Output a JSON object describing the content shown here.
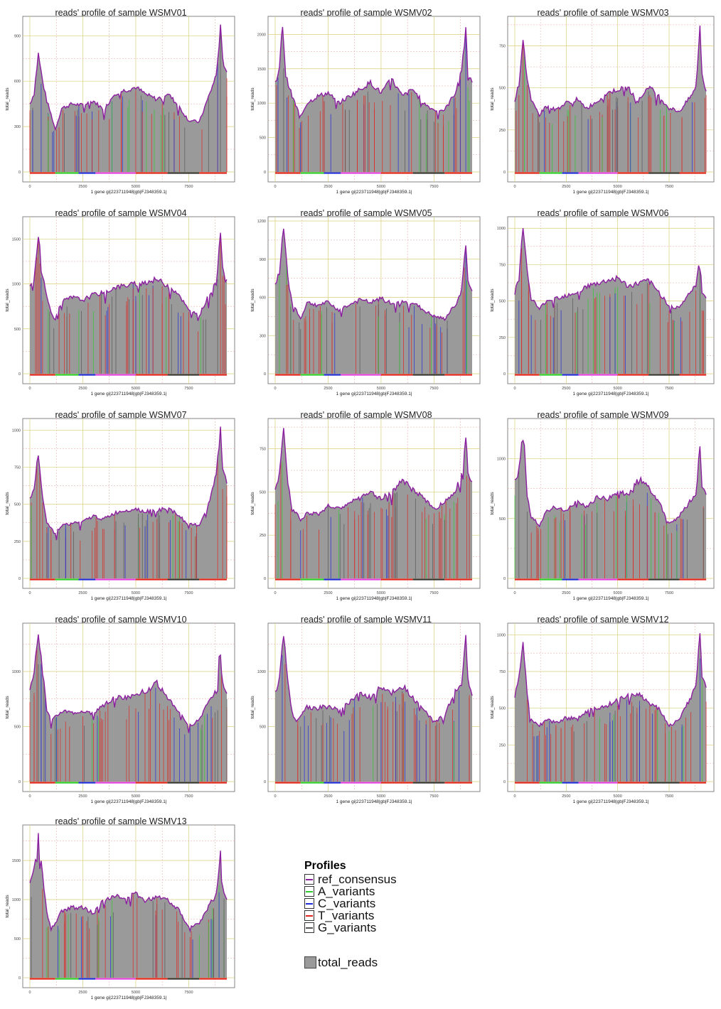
{
  "colors": {
    "fill": "#9a9a9a",
    "ref_consensus": "#8b1fa0",
    "A_variants": "#2ecc2e",
    "C_variants": "#1f2ad8",
    "T_variants": "#e0241f",
    "G_variants": "#555555",
    "grid_major": "#d8cf7a",
    "grid_minor": "#e6a3a3"
  },
  "legend": {
    "profiles_title": "Profiles",
    "items": [
      "ref_consensus",
      "A_variants",
      "C_variants",
      "T_variants",
      "G_variants"
    ],
    "total_reads_label": "total_reads"
  },
  "chart_data": [
    {
      "type": "area",
      "title": "reads' profile of sample WSMV01",
      "xlabel": "1 gene gi|223711948|gb|FJ348359.1|",
      "ylabel": "total_reads",
      "xlim": [
        0,
        9400
      ],
      "ylim": [
        0,
        1000
      ],
      "xticks": [
        0,
        2500,
        5000,
        7500
      ],
      "yticks": [
        0,
        300,
        600,
        900
      ],
      "x": [
        0,
        200,
        400,
        600,
        800,
        1000,
        1200,
        1500,
        2000,
        2500,
        3000,
        3500,
        4000,
        4500,
        5000,
        5500,
        6000,
        6500,
        7000,
        7500,
        8000,
        8500,
        8800,
        9000,
        9100,
        9300
      ],
      "values": [
        450,
        520,
        780,
        600,
        470,
        380,
        280,
        420,
        450,
        440,
        470,
        410,
        520,
        540,
        560,
        510,
        480,
        520,
        440,
        340,
        330,
        520,
        640,
        950,
        740,
        660
      ]
    },
    {
      "type": "area",
      "title": "reads' profile of sample WSMV02",
      "xlabel": "1 gene gi|223711948|gb|FJ348359.1|",
      "ylabel": "total_reads",
      "xlim": [
        0,
        9400
      ],
      "ylim": [
        0,
        2200
      ],
      "xticks": [
        0,
        2500,
        5000,
        7500
      ],
      "yticks": [
        0,
        500,
        1000,
        1500,
        2000
      ],
      "x": [
        0,
        200,
        350,
        500,
        800,
        1200,
        1500,
        2000,
        2500,
        3000,
        3500,
        4000,
        4500,
        5000,
        5500,
        6000,
        6500,
        7000,
        7500,
        8000,
        8500,
        8800,
        9000,
        9100,
        9300
      ],
      "values": [
        1300,
        1500,
        2150,
        1400,
        1100,
        800,
        1000,
        1100,
        1150,
        1000,
        1100,
        1200,
        1300,
        1150,
        1350,
        1100,
        1200,
        1000,
        900,
        900,
        1150,
        1500,
        2050,
        1450,
        1300
      ]
    },
    {
      "type": "area",
      "title": "reads' profile of sample WSMV03",
      "xlabel": "1 gene gi|223711948|gb|FJ348359.1|",
      "ylabel": "total_reads",
      "xlim": [
        0,
        9400
      ],
      "ylim": [
        0,
        900
      ],
      "xticks": [
        0,
        2500,
        5000,
        7500
      ],
      "yticks": [
        0,
        250,
        500,
        750
      ],
      "x": [
        0,
        200,
        400,
        600,
        800,
        1000,
        1200,
        1500,
        2000,
        2500,
        3000,
        3500,
        4000,
        4500,
        5000,
        5500,
        6000,
        6500,
        7000,
        7500,
        8000,
        8500,
        8800,
        9000,
        9100,
        9300
      ],
      "values": [
        430,
        520,
        800,
        550,
        420,
        380,
        340,
        390,
        370,
        410,
        430,
        380,
        420,
        470,
        490,
        500,
        420,
        510,
        450,
        380,
        360,
        440,
        500,
        860,
        580,
        480
      ]
    },
    {
      "type": "area",
      "title": "reads' profile of sample WSMV04",
      "xlabel": "1 gene gi|223711948|gb|FJ348359.1|",
      "ylabel": "total_reads",
      "xlim": [
        0,
        9400
      ],
      "ylim": [
        0,
        1700
      ],
      "xticks": [
        0,
        2500,
        5000,
        7500
      ],
      "yticks": [
        0,
        500,
        1000,
        1500
      ],
      "x": [
        0,
        200,
        400,
        600,
        800,
        1000,
        1200,
        1500,
        2000,
        2500,
        3000,
        3500,
        4000,
        4500,
        5000,
        5500,
        6000,
        6500,
        7000,
        7500,
        8000,
        8500,
        8800,
        9000,
        9100,
        9300
      ],
      "values": [
        950,
        1050,
        1550,
        1100,
        850,
        700,
        600,
        800,
        850,
        820,
        880,
        900,
        960,
        980,
        1000,
        1020,
        1050,
        980,
        900,
        700,
        650,
        900,
        1000,
        1600,
        1200,
        1050
      ]
    },
    {
      "type": "area",
      "title": "reads' profile of sample WSMV05",
      "xlabel": "1 gene gi|223711948|gb|FJ348359.1|",
      "ylabel": "total_reads",
      "xlim": [
        0,
        9400
      ],
      "ylim": [
        0,
        1200
      ],
      "xticks": [
        0,
        2500,
        5000,
        7500
      ],
      "yticks": [
        0,
        300,
        600,
        900,
        1200
      ],
      "x": [
        0,
        200,
        400,
        600,
        800,
        1000,
        1200,
        1500,
        2000,
        2500,
        3000,
        3500,
        4000,
        4500,
        5000,
        5500,
        6000,
        6500,
        7000,
        7500,
        8000,
        8500,
        8800,
        9000,
        9100,
        9300
      ],
      "values": [
        700,
        800,
        1150,
        750,
        560,
        500,
        430,
        560,
        540,
        560,
        500,
        540,
        580,
        560,
        590,
        550,
        560,
        560,
        500,
        450,
        430,
        540,
        650,
        1030,
        720,
        650
      ]
    },
    {
      "type": "area",
      "title": "reads' profile of sample WSMV06",
      "xlabel": "1 gene gi|223711948|gb|FJ348359.1|",
      "ylabel": "total_reads",
      "xlim": [
        0,
        9400
      ],
      "ylim": [
        0,
        1050
      ],
      "xticks": [
        0,
        2500,
        5000,
        7500
      ],
      "yticks": [
        0,
        250,
        500,
        750,
        1000
      ],
      "x": [
        0,
        200,
        400,
        600,
        800,
        1000,
        1200,
        1500,
        2000,
        2500,
        3000,
        3500,
        4000,
        4500,
        5000,
        5500,
        6000,
        6500,
        7000,
        7500,
        8000,
        8500,
        8800,
        9000,
        9100,
        9300
      ],
      "values": [
        560,
        650,
        1030,
        700,
        520,
        480,
        440,
        500,
        520,
        540,
        560,
        600,
        620,
        640,
        660,
        600,
        620,
        640,
        560,
        470,
        450,
        560,
        600,
        790,
        560,
        520
      ]
    },
    {
      "type": "area",
      "title": "reads' profile of sample WSMV07",
      "xlabel": "1 gene gi|223711948|gb|FJ348359.1|",
      "ylabel": "total_reads",
      "xlim": [
        0,
        9400
      ],
      "ylim": [
        0,
        1050
      ],
      "xticks": [
        0,
        2500,
        5000,
        7500
      ],
      "yticks": [
        0,
        250,
        500,
        750,
        1000
      ],
      "x": [
        0,
        200,
        400,
        600,
        800,
        1000,
        1200,
        1500,
        2000,
        2500,
        3000,
        3500,
        4000,
        4500,
        5000,
        5500,
        6000,
        6500,
        7000,
        7500,
        8000,
        8500,
        8800,
        9000,
        9100,
        9300
      ],
      "values": [
        540,
        600,
        850,
        560,
        380,
        340,
        300,
        360,
        370,
        380,
        420,
        400,
        440,
        460,
        470,
        450,
        460,
        470,
        430,
        360,
        360,
        520,
        700,
        1000,
        760,
        640
      ]
    },
    {
      "type": "area",
      "title": "reads' profile of sample WSMV08",
      "xlabel": "1 gene gi|223711948|gb|FJ348359.1|",
      "ylabel": "total_reads",
      "xlim": [
        0,
        9400
      ],
      "ylim": [
        0,
        900
      ],
      "xticks": [
        0,
        2500,
        5000,
        7500
      ],
      "yticks": [
        0,
        250,
        500,
        750
      ],
      "x": [
        0,
        200,
        400,
        600,
        800,
        1000,
        1200,
        1500,
        2000,
        2500,
        3000,
        3500,
        4000,
        4500,
        5000,
        5500,
        6000,
        6500,
        7000,
        7500,
        8000,
        8500,
        8800,
        9000,
        9100,
        9300
      ],
      "values": [
        500,
        600,
        870,
        560,
        400,
        380,
        340,
        380,
        370,
        420,
        400,
        440,
        460,
        500,
        460,
        500,
        570,
        510,
        470,
        400,
        440,
        510,
        600,
        830,
        620,
        560
      ]
    },
    {
      "type": "area",
      "title": "reads' profile of sample WSMV09",
      "xlabel": "1 gene gi|223711948|gb|FJ348359.1|",
      "ylabel": "total_reads",
      "xlim": [
        0,
        9400
      ],
      "ylim": [
        0,
        1300
      ],
      "xticks": [
        0,
        2500,
        5000,
        7500
      ],
      "yticks": [
        0,
        500,
        1000
      ],
      "x": [
        0,
        200,
        400,
        600,
        800,
        1000,
        1200,
        1500,
        2000,
        2500,
        3000,
        3500,
        4000,
        4500,
        5000,
        5500,
        6000,
        6500,
        7000,
        7500,
        8000,
        8500,
        8800,
        9000,
        9100,
        9300
      ],
      "values": [
        800,
        900,
        1280,
        700,
        500,
        480,
        440,
        560,
        600,
        560,
        640,
        600,
        680,
        660,
        720,
        700,
        840,
        760,
        640,
        460,
        520,
        640,
        700,
        1110,
        780,
        700
      ]
    },
    {
      "type": "area",
      "title": "reads' profile of sample WSMV10",
      "xlabel": "1 gene gi|223711948|gb|FJ348359.1|",
      "ylabel": "total_reads",
      "xlim": [
        0,
        9400
      ],
      "ylim": [
        0,
        1400
      ],
      "xticks": [
        0,
        2500,
        5000,
        7500
      ],
      "yticks": [
        0,
        500,
        1000
      ],
      "x": [
        0,
        200,
        400,
        600,
        800,
        1000,
        1200,
        1500,
        2000,
        2500,
        3000,
        3500,
        4000,
        4500,
        5000,
        5500,
        6000,
        6500,
        7000,
        7500,
        8000,
        8500,
        8800,
        9000,
        9100,
        9300
      ],
      "values": [
        850,
        1000,
        1360,
        1000,
        650,
        560,
        600,
        640,
        620,
        640,
        620,
        700,
        760,
        760,
        800,
        820,
        900,
        760,
        640,
        500,
        560,
        760,
        820,
        1260,
        900,
        800
      ]
    },
    {
      "type": "area",
      "title": "reads' profile of sample WSMV11",
      "xlabel": "1 gene gi|223711948|gb|FJ348359.1|",
      "ylabel": "total_reads",
      "xlim": [
        0,
        9400
      ],
      "ylim": [
        0,
        1400
      ],
      "xticks": [
        0,
        2500,
        5000,
        7500
      ],
      "yticks": [
        0,
        500,
        1000
      ],
      "x": [
        0,
        200,
        400,
        600,
        800,
        1000,
        1200,
        1500,
        2000,
        2500,
        3000,
        3500,
        4000,
        4500,
        5000,
        5500,
        6000,
        6500,
        7000,
        7500,
        8000,
        8500,
        8800,
        9000,
        9100,
        9300
      ],
      "values": [
        800,
        950,
        1360,
        900,
        620,
        560,
        600,
        680,
        660,
        700,
        640,
        720,
        800,
        760,
        860,
        800,
        880,
        760,
        660,
        540,
        600,
        820,
        880,
        1330,
        940,
        780
      ]
    },
    {
      "type": "area",
      "title": "reads' profile of sample WSMV12",
      "xlabel": "1 gene gi|223711948|gb|FJ348359.1|",
      "ylabel": "total_reads",
      "xlim": [
        0,
        9400
      ],
      "ylim": [
        0,
        1050
      ],
      "xticks": [
        0,
        2500,
        5000,
        7500
      ],
      "yticks": [
        0,
        250,
        500,
        750,
        1000
      ],
      "x": [
        0,
        200,
        400,
        600,
        800,
        1000,
        1200,
        1500,
        2000,
        2500,
        3000,
        3500,
        4000,
        4500,
        5000,
        5500,
        6000,
        6500,
        7000,
        7500,
        8000,
        8500,
        8800,
        9000,
        9100,
        9300
      ],
      "values": [
        580,
        700,
        950,
        600,
        430,
        400,
        380,
        420,
        400,
        440,
        420,
        480,
        500,
        520,
        560,
        580,
        600,
        540,
        500,
        380,
        420,
        560,
        650,
        1010,
        720,
        640
      ]
    },
    {
      "type": "area",
      "title": "reads' profile of sample WSMV13",
      "xlabel": "1 gene gi|223711948|gb|FJ348359.1|",
      "ylabel": "total_reads",
      "xlim": [
        0,
        9400
      ],
      "ylim": [
        0,
        1900
      ],
      "xticks": [
        0,
        2500,
        5000,
        7500
      ],
      "yticks": [
        0,
        500,
        1000,
        1500
      ],
      "x": [
        0,
        200,
        400,
        600,
        800,
        1000,
        1200,
        1500,
        2000,
        2500,
        3000,
        3500,
        4000,
        4500,
        5000,
        5500,
        6000,
        6500,
        7000,
        7500,
        8000,
        8500,
        8800,
        9000,
        9100,
        9300
      ],
      "values": [
        1250,
        1400,
        1850,
        1300,
        850,
        620,
        700,
        850,
        900,
        900,
        820,
        1000,
        1050,
        1000,
        1080,
        980,
        1050,
        1000,
        880,
        650,
        700,
        950,
        1050,
        1600,
        1150,
        1000
      ]
    }
  ]
}
